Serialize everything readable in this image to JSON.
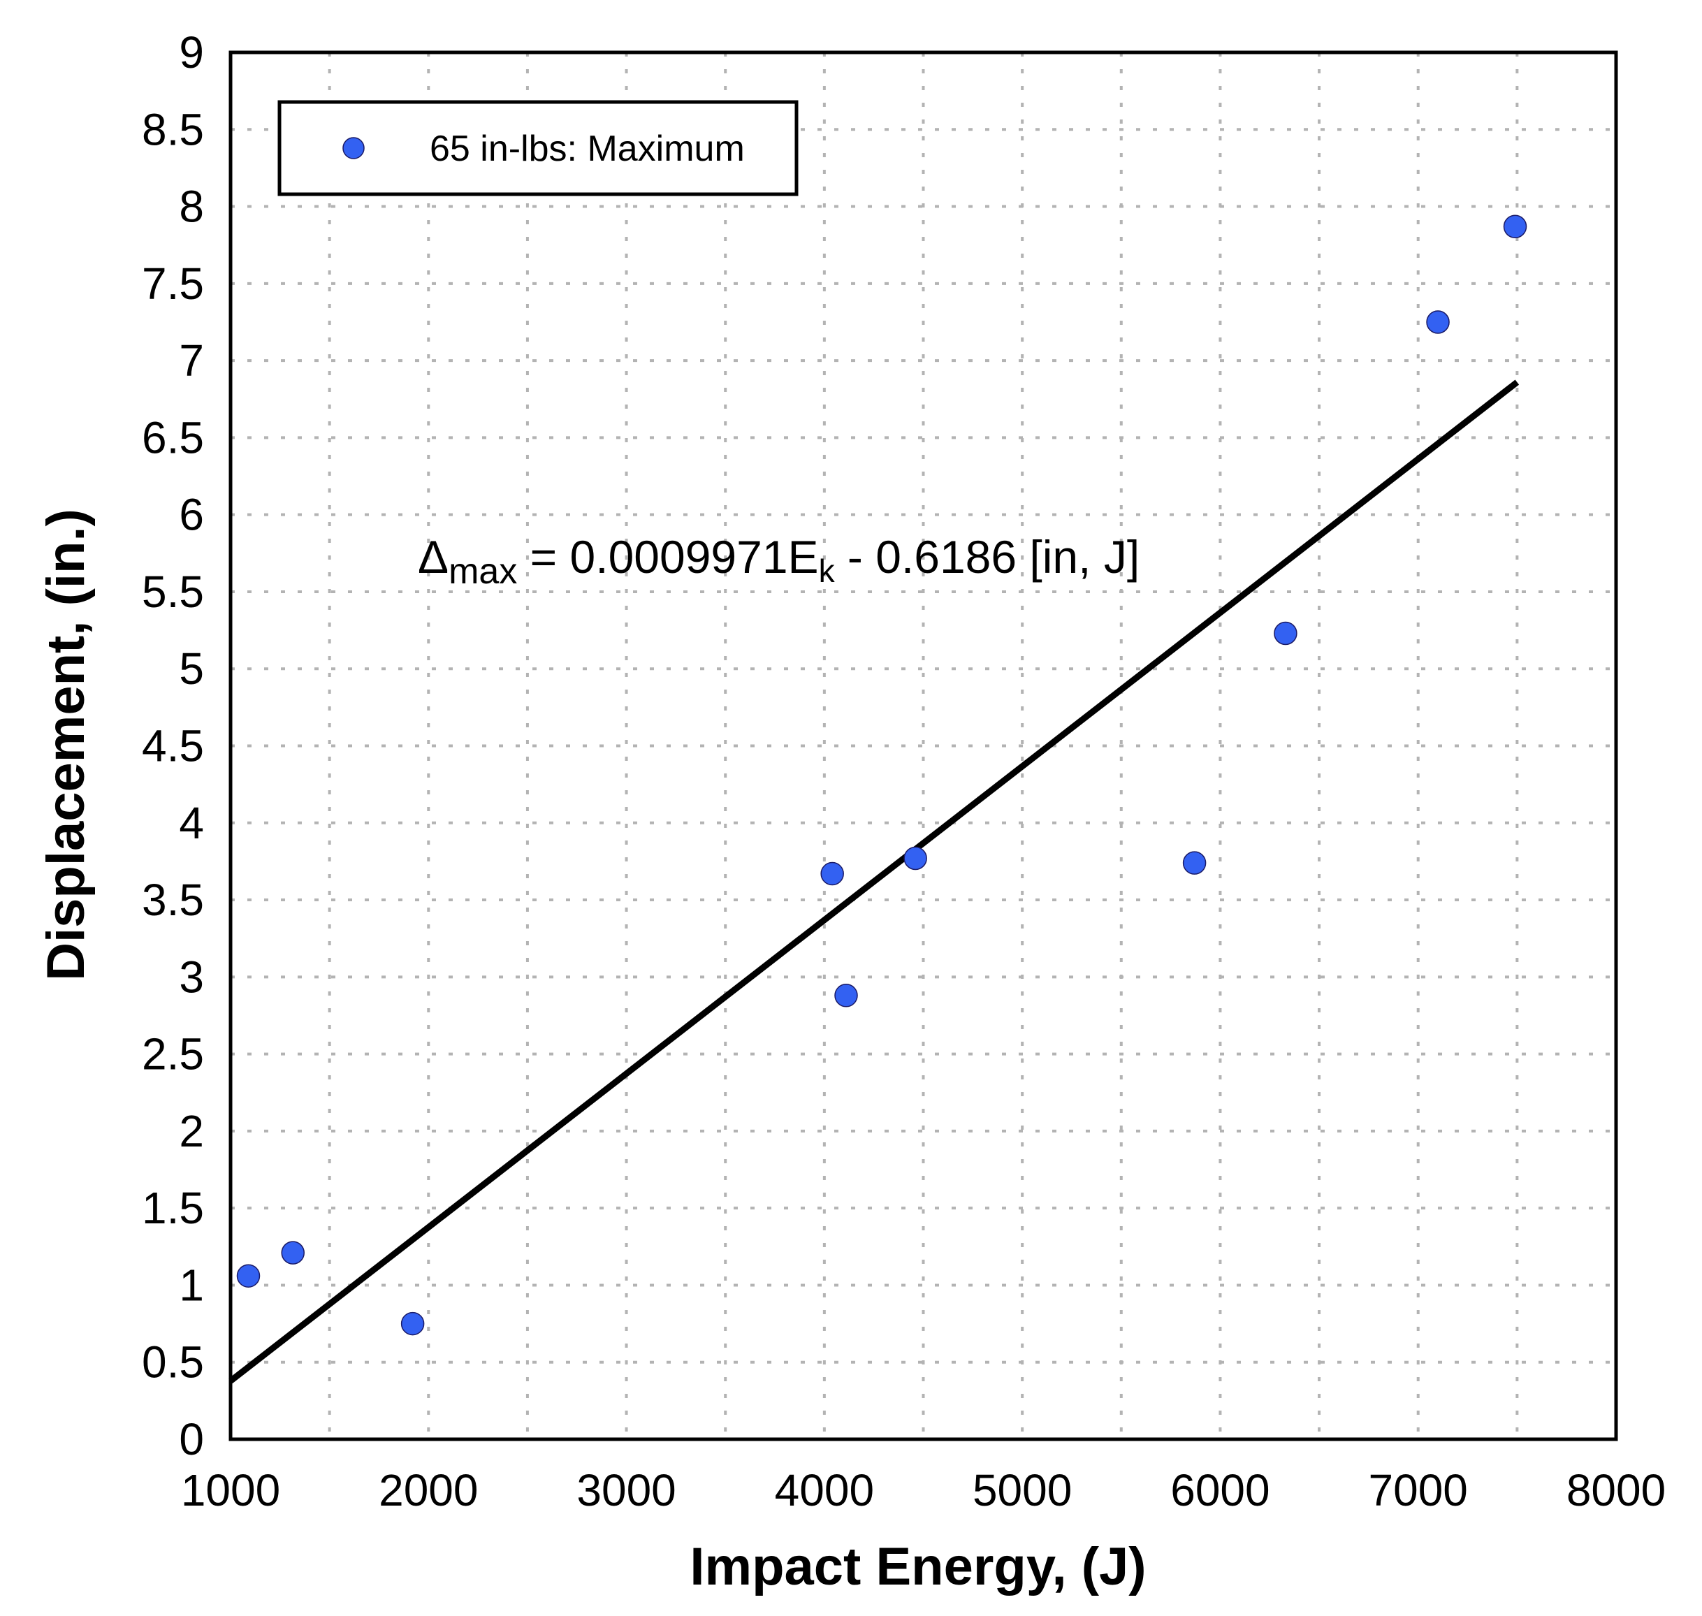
{
  "chart_data": {
    "type": "scatter",
    "xlabel": "Impact Energy, (J)",
    "ylabel": "Displacement, (in.)",
    "xlim": [
      1000,
      8000
    ],
    "ylim": [
      0,
      9
    ],
    "xticks": [
      1000,
      2000,
      3000,
      4000,
      5000,
      6000,
      7000,
      8000
    ],
    "xtick_labels": [
      "1000",
      "2000",
      "3000",
      "4000",
      "5000",
      "6000",
      "7000",
      "8000"
    ],
    "xminor_grid": [
      1500,
      2500,
      3500,
      4500,
      5500,
      6500,
      7500
    ],
    "yticks": [
      0,
      0.5,
      1,
      1.5,
      2,
      2.5,
      3,
      3.5,
      4,
      4.5,
      5,
      5.5,
      6,
      6.5,
      7,
      7.5,
      8,
      8.5,
      9
    ],
    "ytick_labels": [
      "0",
      "0.5",
      "1",
      "1.5",
      "2",
      "2.5",
      "3",
      "3.5",
      "4",
      "4.5",
      "5",
      "5.5",
      "6",
      "6.5",
      "7",
      "7.5",
      "8",
      "8.5",
      "9"
    ],
    "grid": true,
    "legend_position": "top-left",
    "series": [
      {
        "name": "65 in-lbs: Maximum",
        "marker_color": "#3361f2",
        "points": [
          {
            "x": 1090,
            "y": 1.06
          },
          {
            "x": 1315,
            "y": 1.21
          },
          {
            "x": 1920,
            "y": 0.75
          },
          {
            "x": 4040,
            "y": 3.67
          },
          {
            "x": 4110,
            "y": 2.88
          },
          {
            "x": 4460,
            "y": 3.77
          },
          {
            "x": 5870,
            "y": 3.74
          },
          {
            "x": 6330,
            "y": 5.23
          },
          {
            "x": 7100,
            "y": 7.25
          },
          {
            "x": 7490,
            "y": 7.87
          }
        ]
      }
    ],
    "fit_line": {
      "slope": 0.0009971,
      "intercept": -0.6186,
      "x_start": 1000,
      "x_end": 7500,
      "color": "#000000"
    },
    "annotation": {
      "delta": "Δ",
      "sub_max": "max",
      "middle": " = 0.0009971E",
      "sub_k": "k",
      "tail": " - 0.6186 [in, J]"
    }
  }
}
